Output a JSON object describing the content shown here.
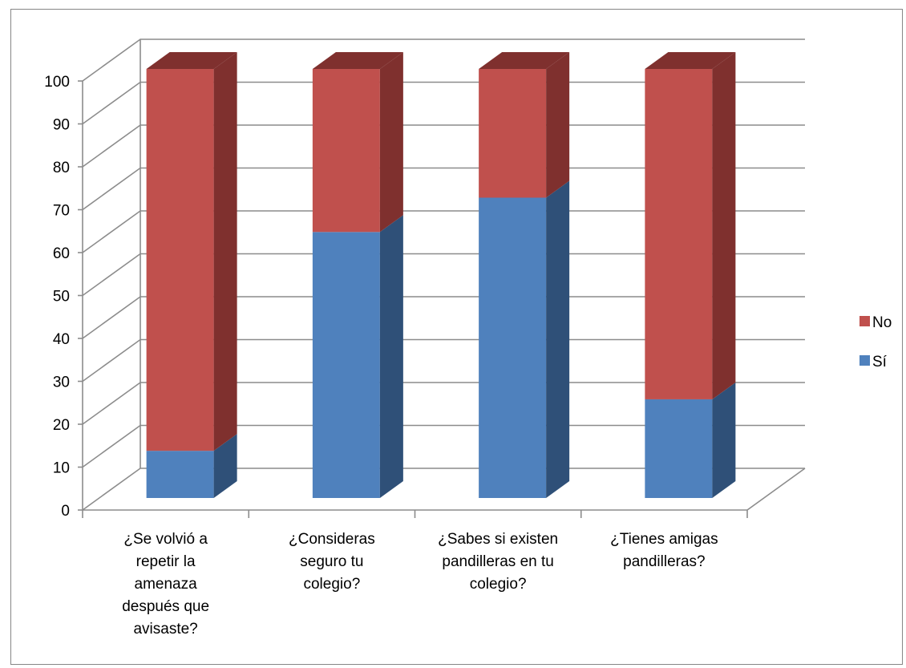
{
  "chart_data": {
    "type": "bar",
    "stacked": true,
    "three_d": true,
    "categories": [
      [
        "¿Se volvió a",
        "repetir la",
        "amenaza",
        "después que",
        "avisaste?"
      ],
      [
        "¿Consideras",
        "seguro tu",
        "colegio?"
      ],
      [
        "¿Sabes si existen",
        "pandilleras en tu",
        "colegio?"
      ],
      [
        "¿Tienes amigas",
        "pandilleras?"
      ]
    ],
    "series": [
      {
        "name": "Sí",
        "color": "#4F81BD",
        "side_color": "#2F5078",
        "values": [
          11,
          62,
          70,
          23
        ]
      },
      {
        "name": "No",
        "color": "#C0504D",
        "side_color": "#7F302E",
        "values": [
          89,
          38,
          30,
          77
        ]
      }
    ],
    "legend_order": [
      "No",
      "Sí"
    ],
    "legend_position": "right",
    "ylim": [
      0,
      100
    ],
    "yticks": [
      0,
      10,
      20,
      30,
      40,
      50,
      60,
      70,
      80,
      90,
      100
    ],
    "grid": true
  }
}
